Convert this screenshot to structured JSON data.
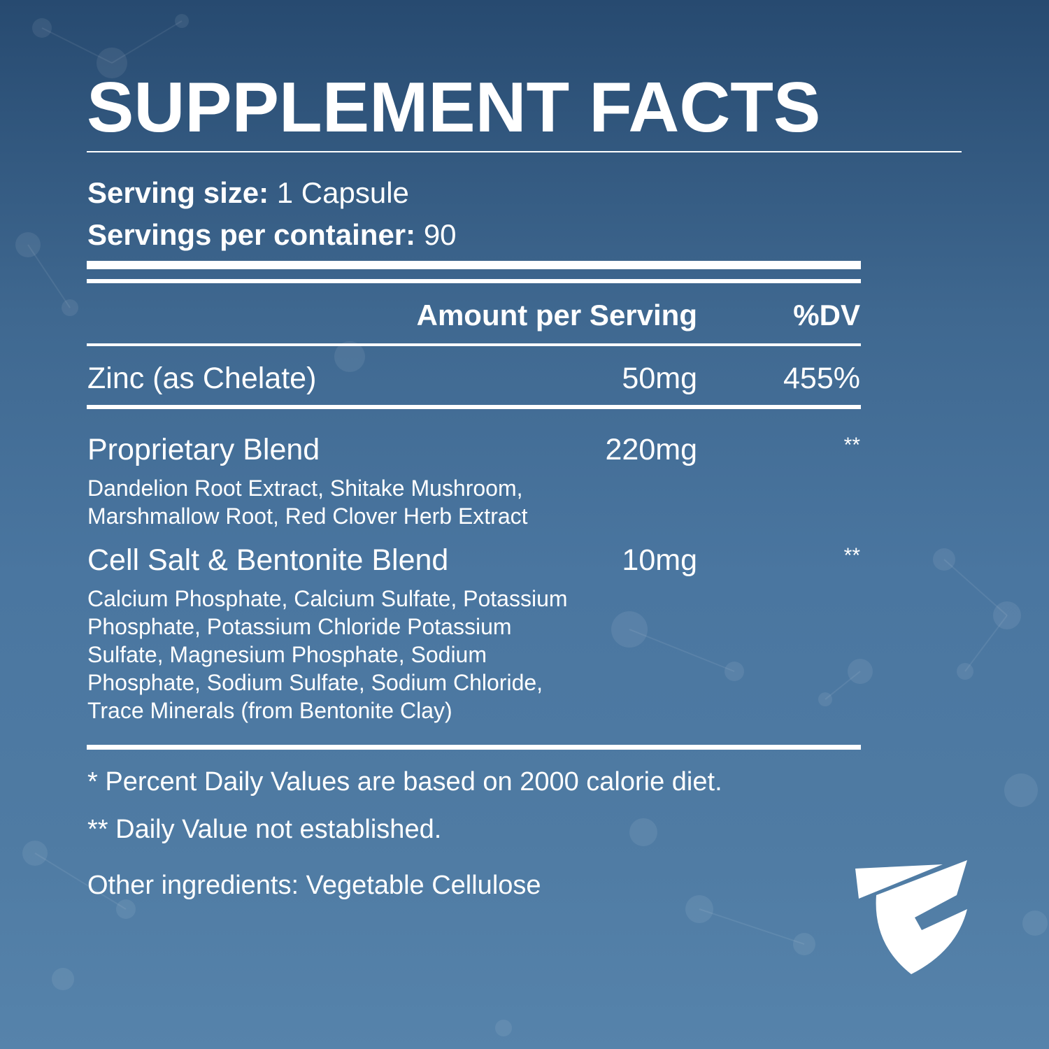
{
  "title": "SUPPLEMENT FACTS",
  "serving": {
    "size_label": "Serving size:",
    "size_value": "1 Capsule",
    "per_container_label": "Servings per container:",
    "per_container_value": "90"
  },
  "table": {
    "header_amount": "Amount per Serving",
    "header_dv": "%DV",
    "rows": [
      {
        "name": "Zinc (as Chelate)",
        "amount": "50mg",
        "dv": "455%"
      },
      {
        "name": "Proprietary Blend",
        "amount": "220mg",
        "dv": "**",
        "ingredients": [
          "Dandelion Root Extract, Shitake Mushroom,",
          "Marshmallow Root, Red Clover Herb Extract"
        ]
      },
      {
        "name": "Cell Salt & Bentonite Blend",
        "amount": "10mg",
        "dv": "**",
        "ingredients": [
          "Calcium Phosphate, Calcium Sulfate, Potassium",
          "Phosphate, Potassium Chloride Potassium",
          "Sulfate, Magnesium Phosphate, Sodium",
          "Phosphate, Sodium Sulfate, Sodium Chloride,",
          "Trace Minerals (from Bentonite Clay)"
        ]
      }
    ]
  },
  "footnotes": {
    "dv_basis": "* Percent Daily Values are based on 2000 calorie diet.",
    "not_established": "** Daily Value not established.",
    "other_ingredients": "Other ingredients: Vegetable Cellulose"
  },
  "logo": {
    "icon": "shield-logo-icon"
  },
  "colors": {
    "background_top": "#274a70",
    "background_bottom": "#5683ab",
    "text": "#ffffff"
  }
}
